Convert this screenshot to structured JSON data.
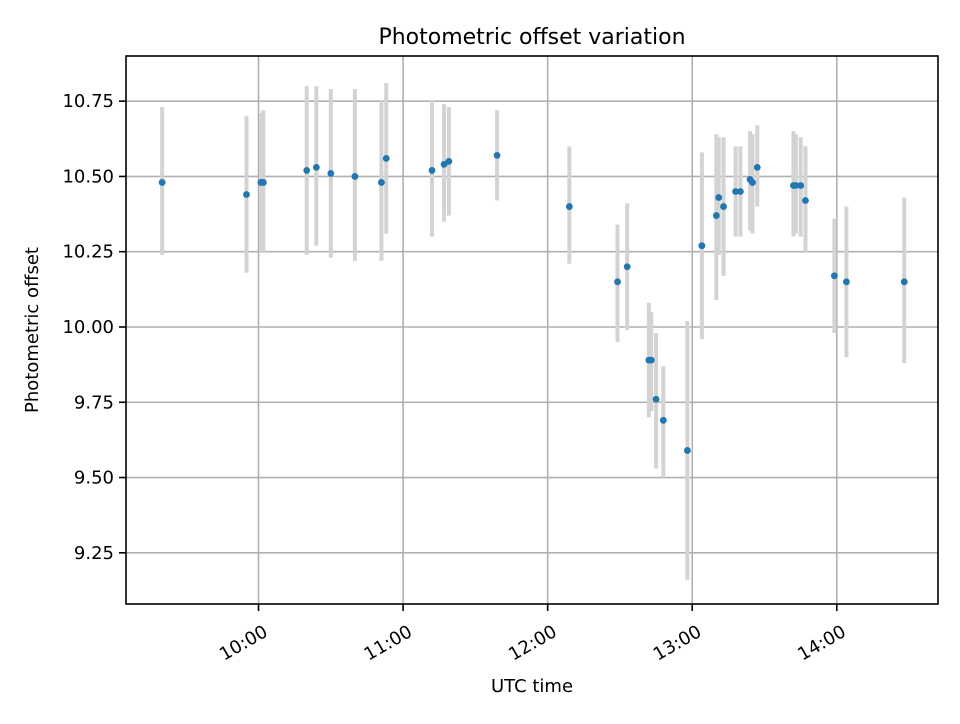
{
  "chart_data": {
    "type": "scatter",
    "title": "Photometric offset variation",
    "xlabel": "UTC time",
    "ylabel": "Photometric offset",
    "x_axis": {
      "type": "time",
      "range": [
        "09:05",
        "14:42"
      ]
    },
    "ylim": [
      9.08,
      10.9
    ],
    "yticks": [
      9.25,
      9.5,
      9.75,
      10.0,
      10.25,
      10.5,
      10.75
    ],
    "ytick_labels": [
      "9.25",
      "9.50",
      "9.75",
      "10.00",
      "10.25",
      "10.50",
      "10.75"
    ],
    "xticks": [
      "10:00",
      "11:00",
      "12:00",
      "13:00",
      "14:00"
    ],
    "xtick_labels": [
      "10:00",
      "11:00",
      "12:00",
      "13:00",
      "14:00"
    ],
    "grid": true,
    "point_color": "#1f77b4",
    "errorbar_color": "#d3d3d3",
    "series": [
      {
        "points": [
          {
            "x": "09:20",
            "y": 10.48,
            "ylo": 10.24,
            "yhi": 10.73
          },
          {
            "x": "09:55",
            "y": 10.44,
            "ylo": 10.18,
            "yhi": 10.7
          },
          {
            "x": "10:01",
            "y": 10.48,
            "ylo": 10.25,
            "yhi": 10.71
          },
          {
            "x": "10:02",
            "y": 10.48,
            "ylo": 10.25,
            "yhi": 10.72
          },
          {
            "x": "10:20",
            "y": 10.52,
            "ylo": 10.24,
            "yhi": 10.8
          },
          {
            "x": "10:24",
            "y": 10.53,
            "ylo": 10.27,
            "yhi": 10.8
          },
          {
            "x": "10:30",
            "y": 10.51,
            "ylo": 10.23,
            "yhi": 10.79
          },
          {
            "x": "10:40",
            "y": 10.5,
            "ylo": 10.22,
            "yhi": 10.79
          },
          {
            "x": "10:51",
            "y": 10.48,
            "ylo": 10.22,
            "yhi": 10.75
          },
          {
            "x": "10:53",
            "y": 10.56,
            "ylo": 10.31,
            "yhi": 10.81
          },
          {
            "x": "11:12",
            "y": 10.52,
            "ylo": 10.3,
            "yhi": 10.75
          },
          {
            "x": "11:17",
            "y": 10.54,
            "ylo": 10.35,
            "yhi": 10.74
          },
          {
            "x": "11:19",
            "y": 10.55,
            "ylo": 10.37,
            "yhi": 10.73
          },
          {
            "x": "11:39",
            "y": 10.57,
            "ylo": 10.42,
            "yhi": 10.72
          },
          {
            "x": "12:09",
            "y": 10.4,
            "ylo": 10.21,
            "yhi": 10.6
          },
          {
            "x": "12:29",
            "y": 10.15,
            "ylo": 9.95,
            "yhi": 10.34
          },
          {
            "x": "12:33",
            "y": 10.2,
            "ylo": 9.99,
            "yhi": 10.41
          },
          {
            "x": "12:42",
            "y": 9.89,
            "ylo": 9.7,
            "yhi": 10.08
          },
          {
            "x": "12:43",
            "y": 9.89,
            "ylo": 9.72,
            "yhi": 10.05
          },
          {
            "x": "12:45",
            "y": 9.76,
            "ylo": 9.53,
            "yhi": 9.98
          },
          {
            "x": "12:48",
            "y": 9.69,
            "ylo": 9.5,
            "yhi": 9.87
          },
          {
            "x": "12:58",
            "y": 9.59,
            "ylo": 9.16,
            "yhi": 10.02
          },
          {
            "x": "13:04",
            "y": 10.27,
            "ylo": 9.96,
            "yhi": 10.58
          },
          {
            "x": "13:10",
            "y": 10.37,
            "ylo": 10.09,
            "yhi": 10.64
          },
          {
            "x": "13:11",
            "y": 10.43,
            "ylo": 10.24,
            "yhi": 10.63
          },
          {
            "x": "13:13",
            "y": 10.4,
            "ylo": 10.17,
            "yhi": 10.63
          },
          {
            "x": "13:18",
            "y": 10.45,
            "ylo": 10.3,
            "yhi": 10.6
          },
          {
            "x": "13:20",
            "y": 10.45,
            "ylo": 10.3,
            "yhi": 10.6
          },
          {
            "x": "13:24",
            "y": 10.49,
            "ylo": 10.32,
            "yhi": 10.65
          },
          {
            "x": "13:25",
            "y": 10.48,
            "ylo": 10.31,
            "yhi": 10.64
          },
          {
            "x": "13:27",
            "y": 10.53,
            "ylo": 10.4,
            "yhi": 10.67
          },
          {
            "x": "13:42",
            "y": 10.47,
            "ylo": 10.3,
            "yhi": 10.65
          },
          {
            "x": "13:43",
            "y": 10.47,
            "ylo": 10.31,
            "yhi": 10.64
          },
          {
            "x": "13:45",
            "y": 10.47,
            "ylo": 10.3,
            "yhi": 10.63
          },
          {
            "x": "13:47",
            "y": 10.42,
            "ylo": 10.25,
            "yhi": 10.6
          },
          {
            "x": "13:59",
            "y": 10.17,
            "ylo": 9.98,
            "yhi": 10.36
          },
          {
            "x": "14:04",
            "y": 10.15,
            "ylo": 9.9,
            "yhi": 10.4
          },
          {
            "x": "14:28",
            "y": 10.15,
            "ylo": 9.88,
            "yhi": 10.43
          }
        ]
      }
    ]
  }
}
